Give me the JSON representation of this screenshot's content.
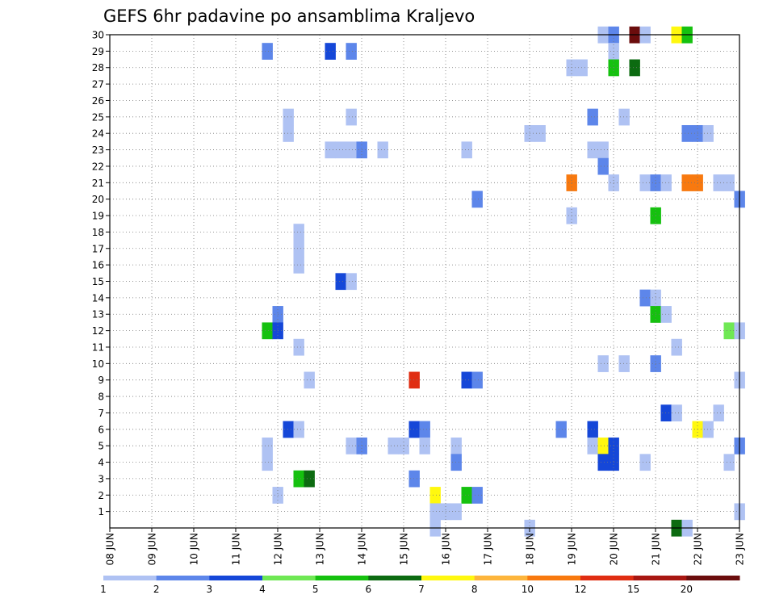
{
  "chart_data": {
    "type": "heatmap",
    "title": "GEFS 6hr padavine po ansamblima Kraljevo",
    "xlabel": "",
    "ylabel": "",
    "x_tick_labels": [
      "08 JUN",
      "09 JUN",
      "10 JUN",
      "11 JUN",
      "12 JUN",
      "13 JUN",
      "14 JUN",
      "15 JUN",
      "16 JUN",
      "17 JUN",
      "18 JUN",
      "19 JUN",
      "20 JUN",
      "21 JUN",
      "22 JUN",
      "23 JUN"
    ],
    "y_tick_labels": [
      "1",
      "2",
      "3",
      "4",
      "5",
      "6",
      "7",
      "8",
      "9",
      "10",
      "11",
      "12",
      "13",
      "14",
      "15",
      "16",
      "17",
      "18",
      "19",
      "20",
      "21",
      "22",
      "23",
      "24",
      "25",
      "26",
      "27",
      "28",
      "29",
      "30"
    ],
    "x_range": [
      "08 JUN 00Z",
      "23 JUN 00Z"
    ],
    "y_range": [
      0,
      30
    ],
    "time_step_hours": 6,
    "grid": true,
    "colorbar": {
      "labels": [
        "1",
        "2",
        "3",
        "4",
        "5",
        "6",
        "7",
        "8",
        "10",
        "12",
        "15",
        "20"
      ],
      "colors": [
        "#afc2f3",
        "#5d86ea",
        "#1547d8",
        "#6fe854",
        "#15c10f",
        "#0c6b11",
        "#fff80f",
        "#fdb53c",
        "#f8790f",
        "#e02d12",
        "#a81712",
        "#6b0d0d"
      ]
    },
    "cells_note": "each cell: [forecast time in days from 08 JUN 00Z, ensemble member 0-30, precipitation color class index 0-11 of colorbar.colors]",
    "cells": [
      [
        11.75,
        30,
        0
      ],
      [
        12.0,
        30,
        1
      ],
      [
        12.5,
        30,
        11
      ],
      [
        12.75,
        30,
        0
      ],
      [
        13.5,
        30,
        6
      ],
      [
        13.75,
        30,
        4
      ],
      [
        3.75,
        29,
        1
      ],
      [
        5.25,
        29,
        2
      ],
      [
        5.75,
        29,
        1
      ],
      [
        12.0,
        29,
        0
      ],
      [
        11.0,
        28,
        0
      ],
      [
        11.25,
        28,
        0
      ],
      [
        12.0,
        28,
        4
      ],
      [
        12.5,
        28,
        5
      ],
      [
        4.25,
        25,
        0
      ],
      [
        5.75,
        25,
        0
      ],
      [
        11.5,
        25,
        1
      ],
      [
        12.25,
        25,
        0
      ],
      [
        4.25,
        24,
        0
      ],
      [
        10.0,
        24,
        0
      ],
      [
        10.25,
        24,
        0
      ],
      [
        13.75,
        24,
        1
      ],
      [
        14.0,
        24,
        1
      ],
      [
        14.25,
        24,
        0
      ],
      [
        5.25,
        23,
        0
      ],
      [
        5.5,
        23,
        0
      ],
      [
        5.75,
        23,
        0
      ],
      [
        6.0,
        23,
        1
      ],
      [
        6.5,
        23,
        0
      ],
      [
        8.5,
        23,
        0
      ],
      [
        11.5,
        23,
        0
      ],
      [
        11.75,
        23,
        0
      ],
      [
        11.75,
        22,
        1
      ],
      [
        11.0,
        21,
        8
      ],
      [
        12.0,
        21,
        0
      ],
      [
        12.75,
        21,
        0
      ],
      [
        13.0,
        21,
        1
      ],
      [
        13.25,
        21,
        0
      ],
      [
        13.75,
        21,
        8
      ],
      [
        14.0,
        21,
        8
      ],
      [
        14.5,
        21,
        0
      ],
      [
        14.75,
        21,
        0
      ],
      [
        8.75,
        20,
        1
      ],
      [
        15.0,
        20,
        1
      ],
      [
        11.0,
        19,
        0
      ],
      [
        13.0,
        19,
        4
      ],
      [
        4.5,
        18,
        0
      ],
      [
        4.5,
        17,
        0
      ],
      [
        4.5,
        16,
        0
      ],
      [
        5.5,
        15,
        2
      ],
      [
        5.75,
        15,
        0
      ],
      [
        12.75,
        14,
        1
      ],
      [
        13.0,
        14,
        0
      ],
      [
        4.0,
        13,
        1
      ],
      [
        13.0,
        13,
        4
      ],
      [
        13.25,
        13,
        0
      ],
      [
        3.75,
        12,
        4
      ],
      [
        4.0,
        12,
        2
      ],
      [
        14.75,
        12,
        3
      ],
      [
        15.0,
        12,
        0
      ],
      [
        4.5,
        11,
        0
      ],
      [
        13.5,
        11,
        0
      ],
      [
        11.75,
        10,
        0
      ],
      [
        12.25,
        10,
        0
      ],
      [
        13.0,
        10,
        1
      ],
      [
        4.75,
        9,
        0
      ],
      [
        8.5,
        9,
        2
      ],
      [
        8.75,
        9,
        1
      ],
      [
        15.0,
        9,
        0
      ],
      [
        13.25,
        7,
        2
      ],
      [
        13.5,
        7,
        0
      ],
      [
        14.5,
        7,
        0
      ],
      [
        4.25,
        6,
        2
      ],
      [
        4.5,
        6,
        0
      ],
      [
        7.25,
        6,
        2
      ],
      [
        7.5,
        6,
        1
      ],
      [
        10.75,
        6,
        1
      ],
      [
        11.5,
        6,
        2
      ],
      [
        14.0,
        6,
        6
      ],
      [
        14.25,
        6,
        0
      ],
      [
        3.75,
        5,
        0
      ],
      [
        5.75,
        5,
        0
      ],
      [
        6.0,
        5,
        1
      ],
      [
        6.75,
        5,
        0
      ],
      [
        7.0,
        5,
        0
      ],
      [
        7.25,
        9,
        9
      ],
      [
        7.5,
        5,
        0
      ],
      [
        8.25,
        5,
        0
      ],
      [
        11.5,
        5,
        0
      ],
      [
        11.75,
        5,
        6
      ],
      [
        12.0,
        5,
        2
      ],
      [
        15.0,
        5,
        1
      ],
      [
        3.75,
        4,
        0
      ],
      [
        8.25,
        4,
        1
      ],
      [
        11.75,
        4,
        2
      ],
      [
        12.0,
        4,
        2
      ],
      [
        12.75,
        4,
        0
      ],
      [
        14.75,
        4,
        0
      ],
      [
        4.5,
        3,
        4
      ],
      [
        4.75,
        3,
        5
      ],
      [
        7.25,
        3,
        1
      ],
      [
        4.0,
        2,
        0
      ],
      [
        7.75,
        2,
        6
      ],
      [
        8.5,
        2,
        4
      ],
      [
        8.75,
        2,
        1
      ],
      [
        7.75,
        1,
        0
      ],
      [
        8.0,
        1,
        0
      ],
      [
        8.25,
        1,
        0
      ],
      [
        15.0,
        1,
        0
      ],
      [
        7.75,
        0,
        0
      ],
      [
        10.0,
        0,
        0
      ],
      [
        13.5,
        0,
        5
      ],
      [
        13.75,
        0,
        0
      ]
    ]
  }
}
